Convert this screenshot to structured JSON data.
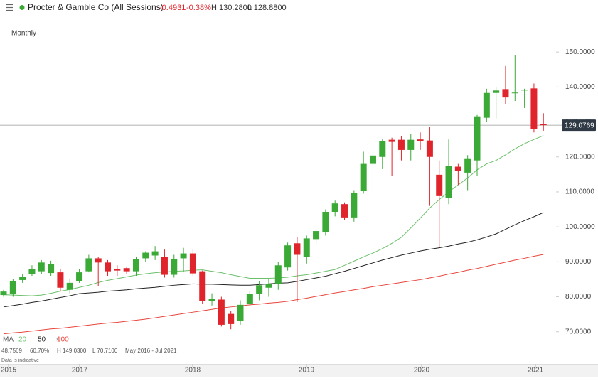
{
  "header": {
    "title": "Procter & Gamble Co (All Sessions)",
    "change": "-0.4931",
    "change_pct": "-0.38%",
    "high": "H 130.2800",
    "low": "L 128.8800"
  },
  "interval": "Monthly",
  "ma_label": "MA",
  "ma_close": "×",
  "info": {
    "value": "48.7569",
    "pct": "60.70%",
    "high": "H 149.0300",
    "low": "L 70.7100",
    "range": "May 2016 - Jul 2021",
    "note": "Data is indicative"
  },
  "chart_data": {
    "type": "candlestick",
    "up_color": "#3aa935",
    "down_color": "#e0242b",
    "open": [
      80.5,
      80.8,
      84.8,
      86.5,
      87.3,
      86.8,
      87,
      82,
      84.5,
      87.3,
      91,
      89.8,
      88,
      88.2,
      87.3,
      91,
      91.8,
      91.4,
      86.3,
      91,
      92.4,
      87.3,
      78.8,
      79.2,
      75.1,
      73,
      78,
      80.8,
      82.6,
      83.6,
      88.4,
      95.3,
      91.4,
      96.5,
      98.4,
      104.3,
      106.5,
      102.7,
      110.2,
      118,
      120,
      124.9,
      124.9,
      122,
      125,
      124.7,
      114.9,
      108.2,
      117.2,
      115.5,
      119,
      131.2,
      138.3,
      139.4,
      138.2,
      139,
      139.6,
      129.5
    ],
    "high": [
      82,
      85,
      86.5,
      89,
      90.5,
      90.3,
      88,
      85,
      88,
      92,
      91.5,
      90.5,
      89,
      88.5,
      91.5,
      93,
      94.5,
      93.5,
      92,
      94,
      93.5,
      87.5,
      81,
      80,
      76,
      79,
      81.5,
      84.5,
      85,
      90,
      95.5,
      97,
      97.5,
      99.5,
      105,
      107.5,
      107,
      110.5,
      121.5,
      122,
      125,
      125.5,
      126,
      126.5,
      127,
      128.5,
      119,
      125,
      118,
      120.5,
      132,
      139.5,
      140,
      146,
      149.03,
      139.5,
      141,
      132.5
    ],
    "low": [
      80,
      80,
      84,
      86,
      86.5,
      86,
      81.5,
      81,
      84,
      87,
      83,
      86,
      86,
      86.5,
      86,
      90,
      90.5,
      85.5,
      85.5,
      87,
      86,
      78,
      77.5,
      71.5,
      70.71,
      72,
      77.5,
      79,
      80,
      82,
      87.5,
      78.5,
      89.5,
      95,
      97.5,
      103,
      102,
      101.5,
      109.5,
      110,
      116.5,
      114.5,
      119,
      119,
      122,
      106,
      94.3,
      106.5,
      112,
      110.5,
      114.5,
      130,
      131,
      135,
      136,
      134,
      127,
      127.5
    ],
    "close": [
      81.5,
      84.5,
      85.8,
      88,
      89.8,
      89.3,
      82.6,
      84,
      87,
      91,
      89.8,
      87.3,
      87.5,
      87.3,
      90.8,
      92.6,
      93,
      86.3,
      90.8,
      92.4,
      86.7,
      78.8,
      79.4,
      72,
      72.2,
      77.7,
      80.8,
      83.3,
      83.6,
      89,
      94.7,
      92,
      96.7,
      98.8,
      104.3,
      106.7,
      102.7,
      109.6,
      118,
      120.4,
      124.5,
      124.3,
      122,
      124.9,
      124.6,
      120,
      108.8,
      117.5,
      116,
      119.6,
      131.6,
      138.3,
      139,
      137,
      138.4,
      139.2,
      128,
      129.08
    ],
    "moving_averages": [
      {
        "name": "20",
        "color": "#6cc06c",
        "values": [
          80.6,
          80.5,
          80.4,
          80.3,
          80.5,
          81,
          81.6,
          82.1,
          82.7,
          83.3,
          84.1,
          84.7,
          85.2,
          85.7,
          86.2,
          86.6,
          86.9,
          87.1,
          87.3,
          87.4,
          87.6,
          87.7,
          87.3,
          86.9,
          86.3,
          85.8,
          85.3,
          85.3,
          85.3,
          85.4,
          85.6,
          86,
          86.3,
          86.8,
          87.3,
          87.8,
          89,
          90.2,
          91.4,
          92.5,
          93.8,
          95.3,
          97,
          99.7,
          102.5,
          105.4,
          107.8,
          110,
          112,
          114,
          116.3,
          118,
          119,
          120.6,
          122.3,
          123.8,
          125,
          126.1
        ]
      },
      {
        "name": "50",
        "color": "#222222",
        "values": [
          77.1,
          77.5,
          77.9,
          78.4,
          78.8,
          79.3,
          79.8,
          80.3,
          80.9,
          81.1,
          81.3,
          81.6,
          81.8,
          82,
          82.3,
          82.5,
          82.7,
          83,
          83.3,
          83.5,
          83.7,
          83.6,
          83.6,
          83.5,
          83.4,
          83.3,
          83.3,
          83.5,
          83.7,
          83.9,
          84,
          84.4,
          84.9,
          85.4,
          85.9,
          86.6,
          87.3,
          88.1,
          88.9,
          89.7,
          90.5,
          91.2,
          91.9,
          92.5,
          93.1,
          93.6,
          94,
          94.5,
          95.1,
          95.6,
          96.3,
          97.1,
          98,
          99.3,
          100.6,
          101.8,
          102.9,
          104.1
        ]
      },
      {
        "name": "100",
        "color": "#e8453c",
        "values": [
          69.4,
          69.7,
          69.9,
          70.2,
          70.5,
          70.8,
          71,
          71.3,
          71.6,
          71.9,
          72.2,
          72.5,
          72.7,
          73,
          73.3,
          73.6,
          74,
          74.4,
          74.8,
          75.2,
          75.6,
          76,
          76.4,
          76.8,
          77.1,
          77.4,
          77.7,
          77.9,
          78.2,
          78.4,
          78.7,
          79.2,
          79.6,
          80.1,
          80.6,
          81.1,
          81.5,
          82,
          82.4,
          82.9,
          83.3,
          83.7,
          84.1,
          84.5,
          84.9,
          85.4,
          85.9,
          86.5,
          87,
          87.6,
          88.1,
          88.7,
          89.3,
          89.9,
          90.5,
          91,
          91.6,
          92.1
        ]
      }
    ],
    "last_price": 129.0769,
    "x_labels": [
      "2015",
      "2017",
      "2018",
      "2019",
      "2020",
      "2021"
    ],
    "ylim": [
      60.8,
      160.2
    ],
    "yticks": [
      {
        "value": 70,
        "label": "70.0000"
      },
      {
        "value": 80,
        "label": "80.0000"
      },
      {
        "value": 90,
        "label": "90.0000"
      },
      {
        "value": 100,
        "label": "100.0000"
      },
      {
        "value": 110,
        "label": "110.0000"
      },
      {
        "value": 120,
        "label": "120.0000"
      },
      {
        "value": 130,
        "label": "130.0000"
      },
      {
        "value": 140,
        "label": "140.0000"
      },
      {
        "value": 150,
        "label": "150.0000"
      }
    ]
  }
}
